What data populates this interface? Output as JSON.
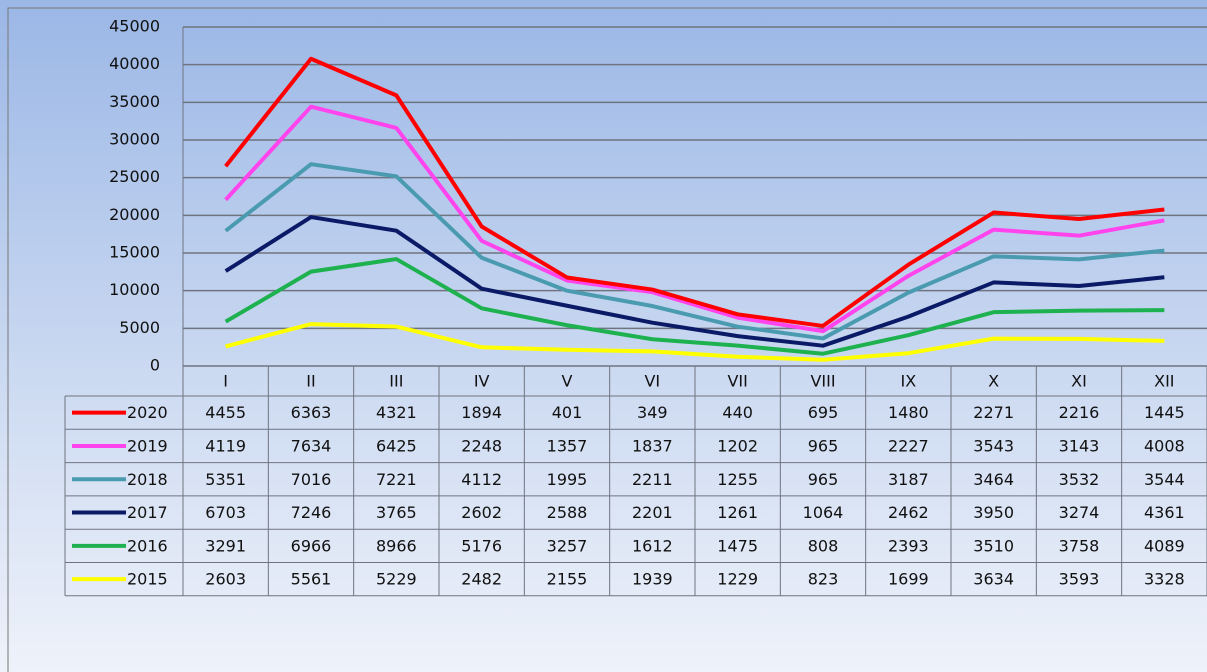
{
  "chart_data": {
    "type": "stacked-line",
    "categories": [
      "I",
      "II",
      "III",
      "IV",
      "V",
      "VI",
      "VII",
      "VIII",
      "IX",
      "X",
      "XI",
      "XII"
    ],
    "series": [
      {
        "name": "2020",
        "color": "#ff0000",
        "values": [
          4455,
          6363,
          4321,
          1894,
          401,
          349,
          440,
          695,
          1480,
          2271,
          2216,
          1445
        ]
      },
      {
        "name": "2019",
        "color": "#ff44ee",
        "values": [
          4119,
          7634,
          6425,
          2248,
          1357,
          1837,
          1202,
          965,
          2227,
          3543,
          3143,
          4008
        ]
      },
      {
        "name": "2018",
        "color": "#4a9bb0",
        "values": [
          5351,
          7016,
          7221,
          4112,
          1995,
          2211,
          1255,
          965,
          3187,
          3464,
          3532,
          3544
        ]
      },
      {
        "name": "2017",
        "color": "#0b1a66",
        "values": [
          6703,
          7246,
          3765,
          2602,
          2588,
          2201,
          1261,
          1064,
          2462,
          3950,
          3274,
          4361
        ]
      },
      {
        "name": "2016",
        "color": "#1eb14f",
        "values": [
          3291,
          6966,
          8966,
          5176,
          3257,
          1612,
          1475,
          808,
          2393,
          3510,
          3758,
          4089
        ]
      },
      {
        "name": "2015",
        "color": "#ffff00",
        "values": [
          2603,
          5561,
          5229,
          2482,
          2155,
          1939,
          1229,
          823,
          1699,
          3634,
          3593,
          3328
        ]
      }
    ],
    "ylim": [
      0,
      45000
    ],
    "yticks": [
      0,
      5000,
      10000,
      15000,
      20000,
      25000,
      30000,
      35000,
      40000,
      45000
    ],
    "grid": true,
    "data_table": true
  }
}
